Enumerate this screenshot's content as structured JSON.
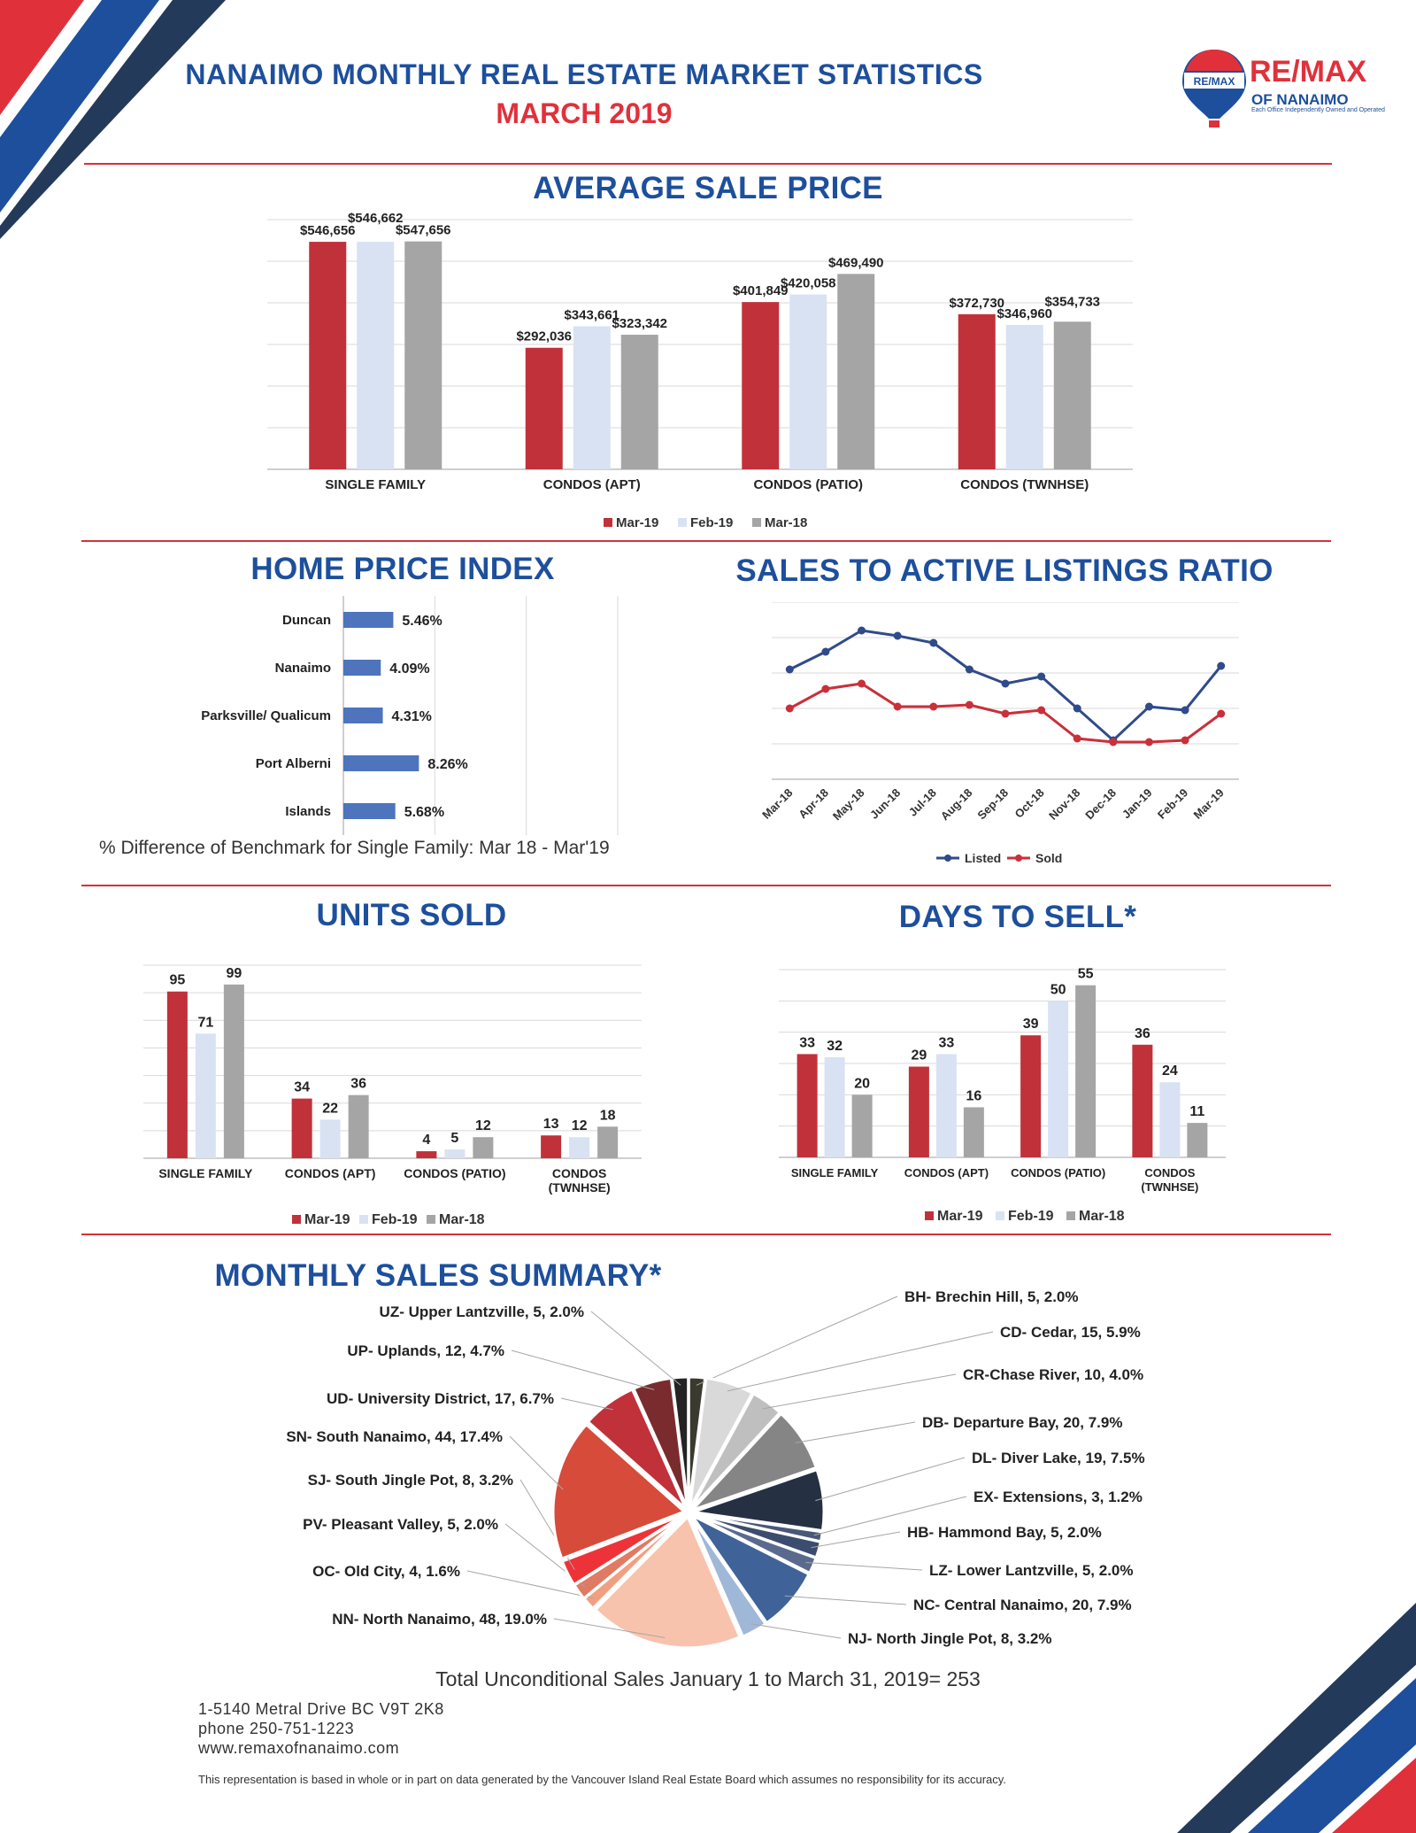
{
  "header": {
    "title": "NANAIMO MONTHLY REAL ESTATE MARKET STATISTICS",
    "subtitle": "MARCH 2019",
    "logo_main": "RE/MAX",
    "logo_sub": "OF NANAIMO",
    "logo_tag": "Each Office Independently Owned and Operated",
    "balloon_text": "RE/MAX"
  },
  "sections": {
    "avg_price": "AVERAGE SALE PRICE",
    "hpi": "HOME PRICE INDEX",
    "ratio": "SALES TO ACTIVE LISTINGS RATIO",
    "units": "UNITS SOLD",
    "days": "DAYS TO SELL*",
    "summary": "MONTHLY SALES SUMMARY*"
  },
  "hpi_note": "% Difference of Benchmark for Single Family: Mar 18 - Mar'19",
  "total_note": "Total Unconditional Sales January 1 to March 31, 2019= 253",
  "footer": {
    "address": "1-5140 Metral Drive BC V9T 2K8",
    "phone": "phone 250-751-1223",
    "web": "www.remaxofnanaimo.com",
    "disclaimer": "This representation is based in whole or in part on data generated by the Vancouver Island Real Estate Board which assumes no responsibility for its accuracy."
  },
  "colors": {
    "mar19": "#c1313a",
    "feb19": "#d9e2f3",
    "mar18": "#a5a5a5",
    "blue": "#1d4f9c",
    "red": "#d7303a"
  },
  "chart_data": [
    {
      "id": "avg_price",
      "type": "bar",
      "categories": [
        "SINGLE FAMILY",
        "CONDOS (APT)",
        "CONDOS (PATIO)",
        "CONDOS (TWNHSE)"
      ],
      "series": [
        {
          "name": "Mar-19",
          "values": [
            546656,
            292036,
            401849,
            372730
          ],
          "labels": [
            "$546,656",
            "$292,036",
            "$401,849",
            "$372,730"
          ]
        },
        {
          "name": "Feb-19",
          "values": [
            546662,
            343661,
            420058,
            346960
          ],
          "labels": [
            "$546,662",
            "$343,661",
            "$420,058",
            "$346,960"
          ]
        },
        {
          "name": "Mar-18",
          "values": [
            547656,
            323342,
            469490,
            354733
          ],
          "labels": [
            "$547,656",
            "$323,342",
            "$469,490",
            "$354,733"
          ]
        }
      ],
      "ylim": [
        0,
        600000
      ],
      "grid": true,
      "legend": "bottom"
    },
    {
      "id": "hpi",
      "type": "bar",
      "orientation": "horizontal",
      "categories": [
        "Duncan",
        "Nanaimo",
        "Parksville/ Qualicum",
        "Port Alberni",
        "Islands"
      ],
      "values": [
        5.46,
        4.09,
        4.31,
        8.26,
        5.68
      ],
      "labels": [
        "5.46%",
        "4.09%",
        "4.31%",
        "8.26%",
        "5.68%"
      ],
      "xlim": [
        0,
        30
      ],
      "grid": true
    },
    {
      "id": "ratio",
      "type": "line",
      "x": [
        "Mar-18",
        "Apr-18",
        "May-18",
        "Jun-18",
        "Jul-18",
        "Aug-18",
        "Sep-18",
        "Oct-18",
        "Nov-18",
        "Dec-18",
        "Jan-19",
        "Feb-19",
        "Mar-19"
      ],
      "series": [
        {
          "name": "Listed",
          "values": [
            0.61,
            0.66,
            0.72,
            0.705,
            0.685,
            0.61,
            0.57,
            0.59,
            0.5,
            0.41,
            0.505,
            0.495,
            0.62
          ]
        },
        {
          "name": "Sold",
          "values": [
            0.5,
            0.555,
            0.57,
            0.505,
            0.505,
            0.51,
            0.485,
            0.495,
            0.415,
            0.405,
            0.405,
            0.41,
            0.485
          ]
        }
      ],
      "ylim": [
        0.3,
        0.8
      ],
      "grid": true,
      "legend": "bottom"
    },
    {
      "id": "units",
      "type": "bar",
      "categories": [
        "SINGLE FAMILY",
        "CONDOS (APT)",
        "CONDOS (PATIO)",
        "CONDOS (TWNHSE)"
      ],
      "series": [
        {
          "name": "Mar-19",
          "values": [
            95,
            34,
            4,
            13
          ]
        },
        {
          "name": "Feb-19",
          "values": [
            71,
            22,
            5,
            12
          ]
        },
        {
          "name": "Mar-18",
          "values": [
            99,
            36,
            12,
            18
          ]
        }
      ],
      "ylim": [
        0,
        110
      ],
      "grid": true,
      "legend": "bottom"
    },
    {
      "id": "days",
      "type": "bar",
      "categories": [
        "SINGLE FAMILY",
        "CONDOS (APT)",
        "CONDOS (PATIO)",
        "CONDOS (TWNHSE)"
      ],
      "series": [
        {
          "name": "Mar-19",
          "values": [
            33,
            29,
            39,
            36
          ]
        },
        {
          "name": "Feb-19",
          "values": [
            32,
            33,
            50,
            24
          ]
        },
        {
          "name": "Mar-18",
          "values": [
            20,
            16,
            55,
            11
          ]
        }
      ],
      "ylim": [
        0,
        60
      ],
      "grid": true,
      "legend": "bottom"
    },
    {
      "id": "summary",
      "type": "pie",
      "slices": [
        {
          "label": "BH- Brechin Hill, 5, 2.0%",
          "value": 5,
          "color": "#3b3a2e"
        },
        {
          "label": "CD- Cedar, 15, 5.9%",
          "value": 15,
          "color": "#d9d9d9"
        },
        {
          "label": "CR-Chase River, 10, 4.0%",
          "value": 10,
          "color": "#bfbfbf"
        },
        {
          "label": "DB- Departure Bay, 20, 7.9%",
          "value": 20,
          "color": "#858585"
        },
        {
          "label": "DL- Diver Lake, 19, 7.5%",
          "value": 19,
          "color": "#263043"
        },
        {
          "label": "EX- Extensions, 3, 1.2%",
          "value": 3,
          "color": "#4a5877"
        },
        {
          "label": "HB- Hammond Bay, 5, 2.0%",
          "value": 5,
          "color": "#3c4c6e"
        },
        {
          "label": "LZ- Lower Lantzville, 5, 2.0%",
          "value": 5,
          "color": "#5a6a8e"
        },
        {
          "label": "NC- Central Nanaimo, 20, 7.9%",
          "value": 20,
          "color": "#3f6398"
        },
        {
          "label": "NJ- North Jingle Pot, 8, 3.2%",
          "value": 8,
          "color": "#a0b8d8"
        },
        {
          "label": "NN- North Nanaimo, 48, 19.0%",
          "value": 48,
          "color": "#f8c3ad"
        },
        {
          "label": "OC- Old City, 4, 1.6%",
          "value": 4,
          "color": "#f0a080"
        },
        {
          "label": "PV- Pleasant Valley, 5, 2.0%",
          "value": 5,
          "color": "#e07a62"
        },
        {
          "label": "SJ- South Jingle Pot, 8, 3.2%",
          "value": 8,
          "color": "#ee3338"
        },
        {
          "label": "SN- South Nanaimo, 44, 17.4%",
          "value": 44,
          "color": "#d64b3a"
        },
        {
          "label": "UD- University District, 17, 6.7%",
          "value": 17,
          "color": "#c1313a"
        },
        {
          "label": "UP- Uplands, 12, 4.7%",
          "value": 12,
          "color": "#7a2b2e"
        },
        {
          "label": "UZ- Upper Lantzville, 5, 2.0%",
          "value": 5,
          "color": "#242424"
        }
      ]
    }
  ]
}
